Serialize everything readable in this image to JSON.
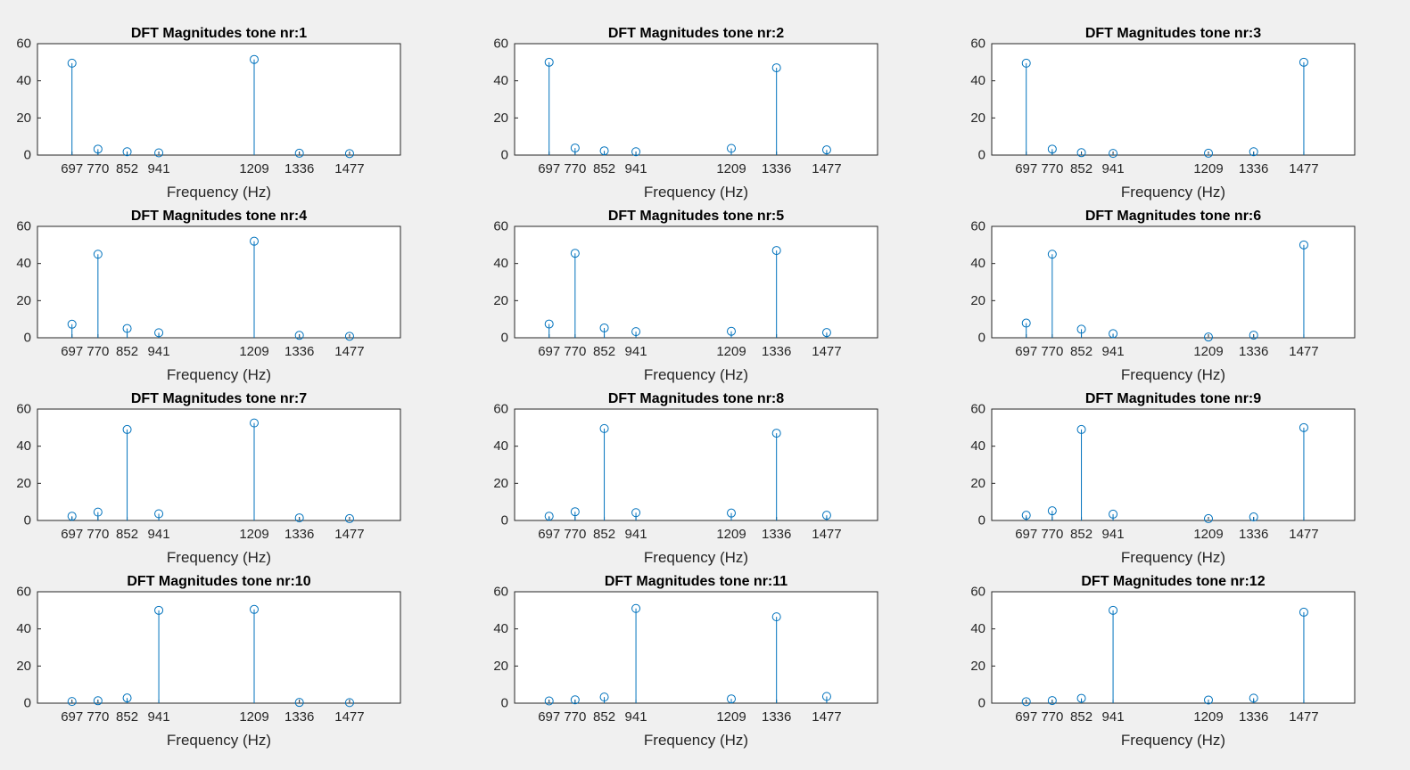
{
  "figure": {
    "background": "#f0f0f0",
    "axes_background": "#ffffff",
    "axes_color": "#262626",
    "series_color": "#0072bd"
  },
  "chart_data": [
    {
      "type": "stem",
      "title": "DFT Magnitudes tone nr:1",
      "xlabel": "Frequency (Hz)",
      "ylabel": "",
      "x": [
        697,
        770,
        852,
        941,
        1209,
        1336,
        1477
      ],
      "xticks": [
        697,
        770,
        852,
        941,
        1209,
        1336,
        1477
      ],
      "values": [
        49.5,
        3.2,
        1.8,
        1.2,
        51.5,
        1.0,
        0.8
      ],
      "xlim": [
        600,
        1620
      ],
      "ylim": [
        0,
        60
      ],
      "yticks": [
        0,
        20,
        40,
        60
      ],
      "marker": "circle",
      "grid": false
    },
    {
      "type": "stem",
      "title": "DFT Magnitudes tone nr:2",
      "xlabel": "Frequency (Hz)",
      "ylabel": "",
      "x": [
        697,
        770,
        852,
        941,
        1209,
        1336,
        1477
      ],
      "xticks": [
        697,
        770,
        852,
        941,
        1209,
        1336,
        1477
      ],
      "values": [
        50.0,
        3.8,
        2.3,
        1.8,
        3.6,
        47.0,
        2.8
      ],
      "xlim": [
        600,
        1620
      ],
      "ylim": [
        0,
        60
      ],
      "yticks": [
        0,
        20,
        40,
        60
      ],
      "marker": "circle",
      "grid": false
    },
    {
      "type": "stem",
      "title": "DFT Magnitudes tone nr:3",
      "xlabel": "Frequency (Hz)",
      "ylabel": "",
      "x": [
        697,
        770,
        852,
        941,
        1209,
        1336,
        1477
      ],
      "xticks": [
        697,
        770,
        852,
        941,
        1209,
        1336,
        1477
      ],
      "values": [
        49.5,
        3.2,
        1.3,
        0.9,
        1.0,
        1.8,
        50.0
      ],
      "xlim": [
        600,
        1620
      ],
      "ylim": [
        0,
        60
      ],
      "yticks": [
        0,
        20,
        40,
        60
      ],
      "marker": "circle",
      "grid": false
    },
    {
      "type": "stem",
      "title": "DFT Magnitudes tone nr:4",
      "xlabel": "Frequency (Hz)",
      "ylabel": "",
      "x": [
        697,
        770,
        852,
        941,
        1209,
        1336,
        1477
      ],
      "xticks": [
        697,
        770,
        852,
        941,
        1209,
        1336,
        1477
      ],
      "values": [
        7.3,
        45.0,
        5.0,
        2.7,
        52.0,
        1.3,
        0.8
      ],
      "xlim": [
        600,
        1620
      ],
      "ylim": [
        0,
        60
      ],
      "yticks": [
        0,
        20,
        40,
        60
      ],
      "marker": "circle",
      "grid": false
    },
    {
      "type": "stem",
      "title": "DFT Magnitudes tone nr:5",
      "xlabel": "Frequency (Hz)",
      "ylabel": "",
      "x": [
        697,
        770,
        852,
        941,
        1209,
        1336,
        1477
      ],
      "xticks": [
        697,
        770,
        852,
        941,
        1209,
        1336,
        1477
      ],
      "values": [
        7.4,
        45.5,
        5.3,
        3.3,
        3.5,
        47.0,
        2.8
      ],
      "xlim": [
        600,
        1620
      ],
      "ylim": [
        0,
        60
      ],
      "yticks": [
        0,
        20,
        40,
        60
      ],
      "marker": "circle",
      "grid": false
    },
    {
      "type": "stem",
      "title": "DFT Magnitudes tone nr:6",
      "xlabel": "Frequency (Hz)",
      "ylabel": "",
      "x": [
        697,
        770,
        852,
        941,
        1209,
        1336,
        1477
      ],
      "xticks": [
        697,
        770,
        852,
        941,
        1209,
        1336,
        1477
      ],
      "values": [
        7.9,
        45.0,
        4.6,
        2.2,
        0.4,
        1.4,
        50.0
      ],
      "xlim": [
        600,
        1620
      ],
      "ylim": [
        0,
        60
      ],
      "yticks": [
        0,
        20,
        40,
        60
      ],
      "marker": "circle",
      "grid": false
    },
    {
      "type": "stem",
      "title": "DFT Magnitudes tone nr:7",
      "xlabel": "Frequency (Hz)",
      "ylabel": "",
      "x": [
        697,
        770,
        852,
        941,
        1209,
        1336,
        1477
      ],
      "xticks": [
        697,
        770,
        852,
        941,
        1209,
        1336,
        1477
      ],
      "values": [
        2.3,
        4.5,
        49.0,
        3.6,
        52.5,
        1.4,
        1.0
      ],
      "xlim": [
        600,
        1620
      ],
      "ylim": [
        0,
        60
      ],
      "yticks": [
        0,
        20,
        40,
        60
      ],
      "marker": "circle",
      "grid": false
    },
    {
      "type": "stem",
      "title": "DFT Magnitudes tone nr:8",
      "xlabel": "Frequency (Hz)",
      "ylabel": "",
      "x": [
        697,
        770,
        852,
        941,
        1209,
        1336,
        1477
      ],
      "xticks": [
        697,
        770,
        852,
        941,
        1209,
        1336,
        1477
      ],
      "values": [
        2.3,
        4.7,
        49.5,
        4.2,
        4.0,
        47.0,
        2.8
      ],
      "xlim": [
        600,
        1620
      ],
      "ylim": [
        0,
        60
      ],
      "yticks": [
        0,
        20,
        40,
        60
      ],
      "marker": "circle",
      "grid": false
    },
    {
      "type": "stem",
      "title": "DFT Magnitudes tone nr:9",
      "xlabel": "Frequency (Hz)",
      "ylabel": "",
      "x": [
        697,
        770,
        852,
        941,
        1209,
        1336,
        1477
      ],
      "xticks": [
        697,
        770,
        852,
        941,
        1209,
        1336,
        1477
      ],
      "values": [
        2.8,
        5.2,
        49.0,
        3.4,
        1.0,
        1.9,
        50.0
      ],
      "xlim": [
        600,
        1620
      ],
      "ylim": [
        0,
        60
      ],
      "yticks": [
        0,
        20,
        40,
        60
      ],
      "marker": "circle",
      "grid": false
    },
    {
      "type": "stem",
      "title": "DFT Magnitudes tone nr:10",
      "xlabel": "Frequency (Hz)",
      "ylabel": "",
      "x": [
        697,
        770,
        852,
        941,
        1209,
        1336,
        1477
      ],
      "xticks": [
        697,
        770,
        852,
        941,
        1209,
        1336,
        1477
      ],
      "values": [
        0.9,
        1.3,
        2.8,
        50.0,
        50.5,
        0.4,
        0.3
      ],
      "xlim": [
        600,
        1620
      ],
      "ylim": [
        0,
        60
      ],
      "yticks": [
        0,
        20,
        40,
        60
      ],
      "marker": "circle",
      "grid": false
    },
    {
      "type": "stem",
      "title": "DFT Magnitudes tone nr:11",
      "xlabel": "Frequency (Hz)",
      "ylabel": "",
      "x": [
        697,
        770,
        852,
        941,
        1209,
        1336,
        1477
      ],
      "xticks": [
        697,
        770,
        852,
        941,
        1209,
        1336,
        1477
      ],
      "values": [
        1.2,
        1.8,
        3.3,
        51.0,
        2.3,
        46.5,
        3.6
      ],
      "xlim": [
        600,
        1620
      ],
      "ylim": [
        0,
        60
      ],
      "yticks": [
        0,
        20,
        40,
        60
      ],
      "marker": "circle",
      "grid": false
    },
    {
      "type": "stem",
      "title": "DFT Magnitudes tone nr:12",
      "xlabel": "Frequency (Hz)",
      "ylabel": "",
      "x": [
        697,
        770,
        852,
        941,
        1209,
        1336,
        1477
      ],
      "xticks": [
        697,
        770,
        852,
        941,
        1209,
        1336,
        1477
      ],
      "values": [
        0.8,
        1.4,
        2.6,
        50.0,
        1.7,
        2.7,
        49.0
      ],
      "xlim": [
        600,
        1620
      ],
      "ylim": [
        0,
        60
      ],
      "yticks": [
        0,
        20,
        40,
        60
      ],
      "marker": "circle",
      "grid": false
    }
  ]
}
